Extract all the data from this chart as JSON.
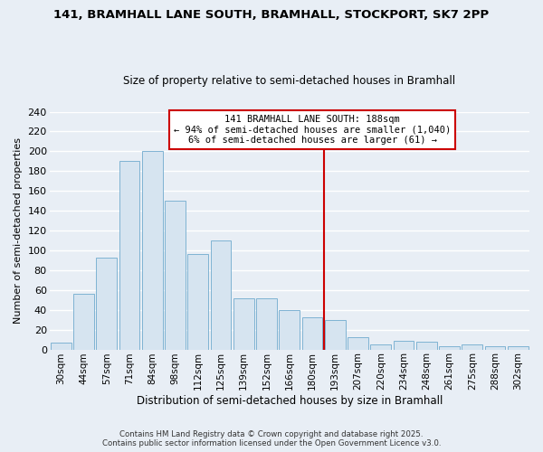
{
  "title": "141, BRAMHALL LANE SOUTH, BRAMHALL, STOCKPORT, SK7 2PP",
  "subtitle": "Size of property relative to semi-detached houses in Bramhall",
  "xlabel": "Distribution of semi-detached houses by size in Bramhall",
  "ylabel": "Number of semi-detached properties",
  "categories": [
    "30sqm",
    "44sqm",
    "57sqm",
    "71sqm",
    "84sqm",
    "98sqm",
    "112sqm",
    "125sqm",
    "139sqm",
    "152sqm",
    "166sqm",
    "180sqm",
    "193sqm",
    "207sqm",
    "220sqm",
    "234sqm",
    "248sqm",
    "261sqm",
    "275sqm",
    "288sqm",
    "302sqm"
  ],
  "values": [
    7,
    56,
    93,
    190,
    200,
    150,
    96,
    110,
    52,
    52,
    40,
    32,
    30,
    12,
    5,
    9,
    8,
    3,
    5,
    3,
    3
  ],
  "bar_color": "#d6e4f0",
  "bar_edge_color": "#7fb3d3",
  "annot_line_color": "#cc0000",
  "annot_box_edge": "#cc0000",
  "annot_box_face": "#ffffff",
  "annot_line1": "141 BRAMHALL LANE SOUTH: 188sqm",
  "annot_line2": "← 94% of semi-detached houses are smaller (1,040)",
  "annot_line3": "6% of semi-detached houses are larger (61) →",
  "vline_index": 12,
  "ylim": [
    0,
    240
  ],
  "yticks": [
    0,
    20,
    40,
    60,
    80,
    100,
    120,
    140,
    160,
    180,
    200,
    220,
    240
  ],
  "background_color": "#e8eef5",
  "grid_color": "#ffffff",
  "footer1": "Contains HM Land Registry data © Crown copyright and database right 2025.",
  "footer2": "Contains public sector information licensed under the Open Government Licence v3.0."
}
